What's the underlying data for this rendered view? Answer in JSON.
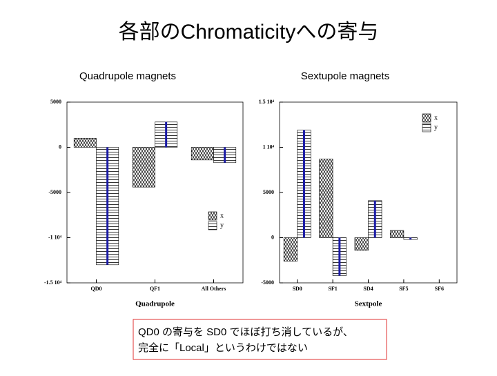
{
  "title": "各部のChromaticityへの寄与",
  "note": [
    "QD0 の寄与を SD0 でほぼ打ち消しているが、",
    "完全に「Local」というわけではない"
  ],
  "chart_data": [
    {
      "type": "bar",
      "title": "Quadrupole magnets",
      "x_label": "Quadrupole",
      "categories": [
        "QD0",
        "QF1",
        "All Others"
      ],
      "series": [
        {
          "name": "x",
          "color": "#000000",
          "pattern": "zigzag",
          "values": [
            1000,
            -4400,
            -1400
          ]
        },
        {
          "name": "y",
          "color": "#000000",
          "pattern": "lines",
          "line_color": "#1a1aa6",
          "values": [
            -13000,
            2800,
            -1700
          ]
        }
      ],
      "ylim": [
        -15000,
        5000
      ],
      "yticks": [
        {
          "value": -15000,
          "label": "-1.5 10⁴"
        },
        {
          "value": -10000,
          "label": "-1 10⁴"
        },
        -5000,
        0,
        5000
      ],
      "legend": "lower right"
    },
    {
      "type": "bar",
      "title": "Sextupole magnets",
      "x_label": "Sextpole",
      "categories": [
        "SD0",
        "SF1",
        "SD4",
        "SF5",
        "SF6"
      ],
      "series": [
        {
          "name": "x",
          "color": "#000000",
          "pattern": "zigzag",
          "values": [
            -2600,
            8700,
            -1400,
            800,
            0
          ]
        },
        {
          "name": "y",
          "color": "#000000",
          "pattern": "lines",
          "line_color": "#1a1aa6",
          "values": [
            11900,
            -4200,
            4100,
            -200,
            0
          ]
        }
      ],
      "ylim": [
        -5000,
        15000
      ],
      "yticks": [
        -5000,
        0,
        5000,
        {
          "value": 10000,
          "label": "1 10⁴"
        },
        {
          "value": 15000,
          "label": "1.5 10⁴"
        }
      ],
      "legend": "upper right"
    }
  ]
}
